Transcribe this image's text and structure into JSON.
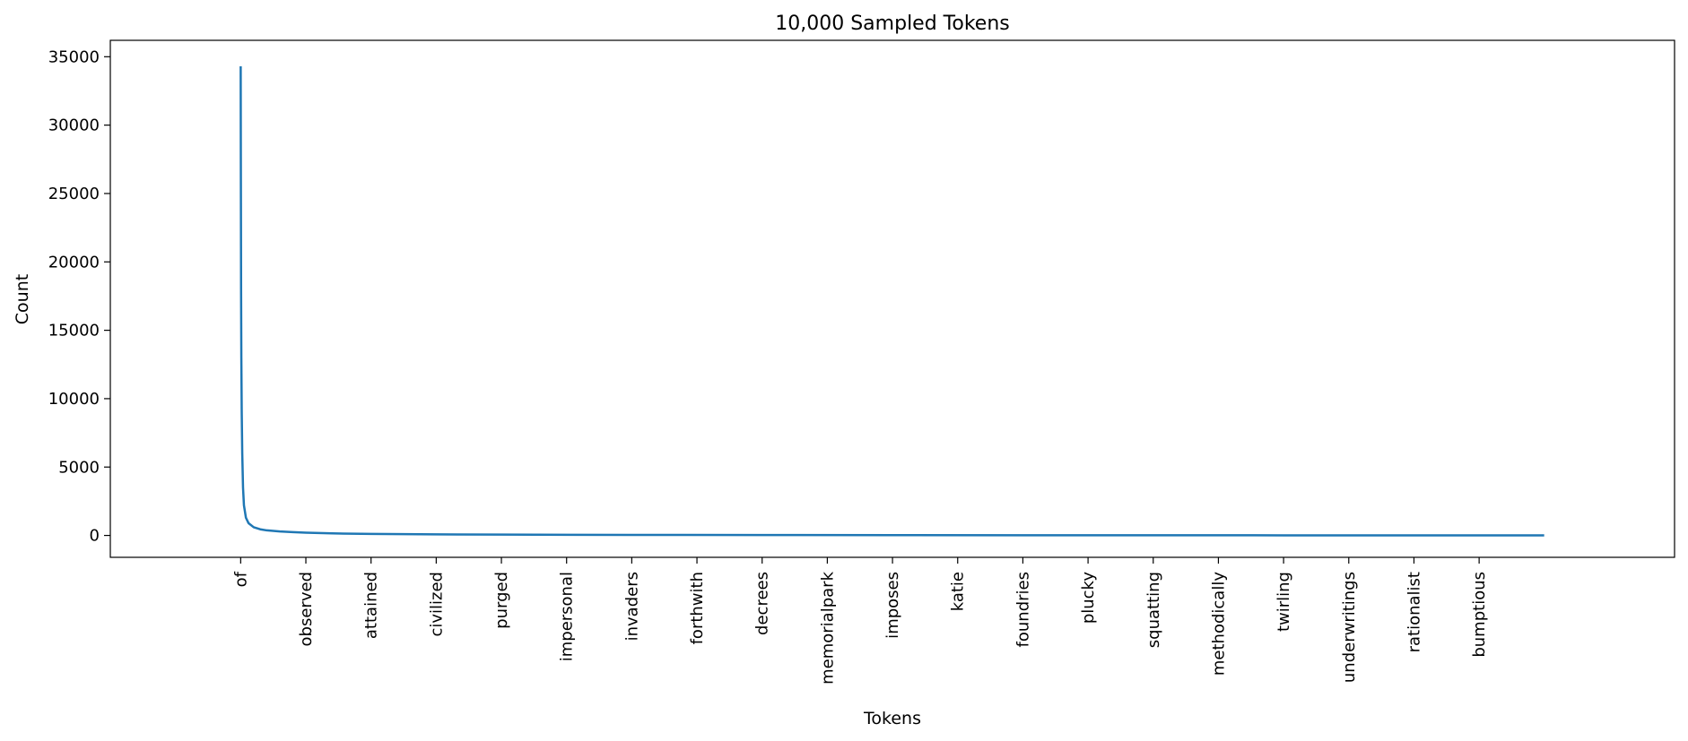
{
  "chart_data": {
    "type": "line",
    "title": "10,000 Sampled Tokens",
    "xlabel": "Tokens",
    "ylabel": "Count",
    "ylim": [
      -1600,
      36200
    ],
    "xlim": [
      -1000,
      10999
    ],
    "grid": false,
    "series_color": "#1f77b4",
    "x_ticks": [
      {
        "pos": 0,
        "label": "of"
      },
      {
        "pos": 500,
        "label": "observed"
      },
      {
        "pos": 1000,
        "label": "attained"
      },
      {
        "pos": 1500,
        "label": "civilized"
      },
      {
        "pos": 2000,
        "label": "purged"
      },
      {
        "pos": 2500,
        "label": "impersonal"
      },
      {
        "pos": 3000,
        "label": "invaders"
      },
      {
        "pos": 3500,
        "label": "forthwith"
      },
      {
        "pos": 4000,
        "label": "decrees"
      },
      {
        "pos": 4500,
        "label": "memorialpark"
      },
      {
        "pos": 5000,
        "label": "imposes"
      },
      {
        "pos": 5500,
        "label": "katie"
      },
      {
        "pos": 6000,
        "label": "foundries"
      },
      {
        "pos": 6500,
        "label": "plucky"
      },
      {
        "pos": 7000,
        "label": "squatting"
      },
      {
        "pos": 7500,
        "label": "methodically"
      },
      {
        "pos": 8000,
        "label": "twirling"
      },
      {
        "pos": 8500,
        "label": "underwritings"
      },
      {
        "pos": 9000,
        "label": "rationalist"
      },
      {
        "pos": 9500,
        "label": "bumptious"
      }
    ],
    "y_ticks": [
      0,
      5000,
      10000,
      15000,
      20000,
      25000,
      30000,
      35000
    ],
    "series": [
      {
        "x": [
          0,
          1,
          2,
          3,
          5,
          8,
          12,
          18,
          25,
          40,
          60,
          100,
          150,
          200,
          300,
          400,
          500,
          700,
          1000,
          1500,
          2000,
          3000,
          4000,
          5000,
          6000,
          7000,
          8000,
          9000,
          9999
        ],
        "values": [
          34300,
          28000,
          23000,
          18000,
          13000,
          9000,
          6000,
          3500,
          2200,
          1300,
          900,
          600,
          450,
          370,
          290,
          240,
          200,
          150,
          110,
          80,
          60,
          40,
          30,
          22,
          16,
          12,
          9,
          6,
          4
        ]
      }
    ]
  }
}
